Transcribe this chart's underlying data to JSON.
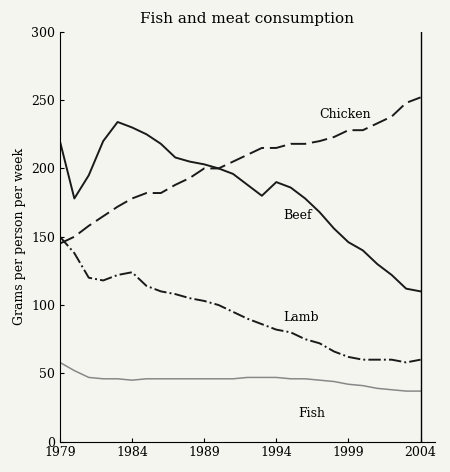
{
  "title": "Fish and meat consumption",
  "ylabel": "Grams per person per week",
  "years": [
    1979,
    1980,
    1981,
    1982,
    1983,
    1984,
    1985,
    1986,
    1987,
    1988,
    1989,
    1990,
    1991,
    1992,
    1993,
    1994,
    1995,
    1996,
    1997,
    1998,
    1999,
    2000,
    2001,
    2002,
    2003,
    2004
  ],
  "beef": [
    220,
    178,
    195,
    220,
    234,
    230,
    225,
    218,
    208,
    205,
    203,
    200,
    196,
    188,
    180,
    190,
    186,
    178,
    168,
    156,
    146,
    140,
    130,
    122,
    112,
    110
  ],
  "chicken": [
    145,
    150,
    158,
    165,
    172,
    178,
    182,
    182,
    188,
    193,
    200,
    200,
    205,
    210,
    215,
    215,
    218,
    218,
    220,
    223,
    228,
    228,
    233,
    238,
    248,
    252
  ],
  "lamb": [
    150,
    138,
    120,
    118,
    122,
    124,
    114,
    110,
    108,
    105,
    103,
    100,
    95,
    90,
    86,
    82,
    80,
    75,
    72,
    66,
    62,
    60,
    60,
    60,
    58,
    60
  ],
  "fish": [
    58,
    52,
    47,
    46,
    46,
    45,
    46,
    46,
    46,
    46,
    46,
    46,
    46,
    47,
    47,
    47,
    46,
    46,
    45,
    44,
    42,
    41,
    39,
    38,
    37,
    37
  ],
  "ylim": [
    0,
    300
  ],
  "yticks": [
    0,
    50,
    100,
    150,
    200,
    250,
    300
  ],
  "xticks": [
    1979,
    1984,
    1989,
    1994,
    1999,
    2004
  ],
  "chicken_ann_x": 1997.0,
  "chicken_ann_y": 237,
  "beef_ann_x": 1994.5,
  "beef_ann_y": 163,
  "lamb_ann_x": 1994.5,
  "lamb_ann_y": 88,
  "fish_ann_x": 1995.5,
  "fish_ann_y": 18,
  "background_color": "#f5f5f0",
  "line_color": "#1a1a1a",
  "fish_line_color": "#888888",
  "title_fontsize": 11,
  "label_fontsize": 9,
  "tick_fontsize": 9
}
